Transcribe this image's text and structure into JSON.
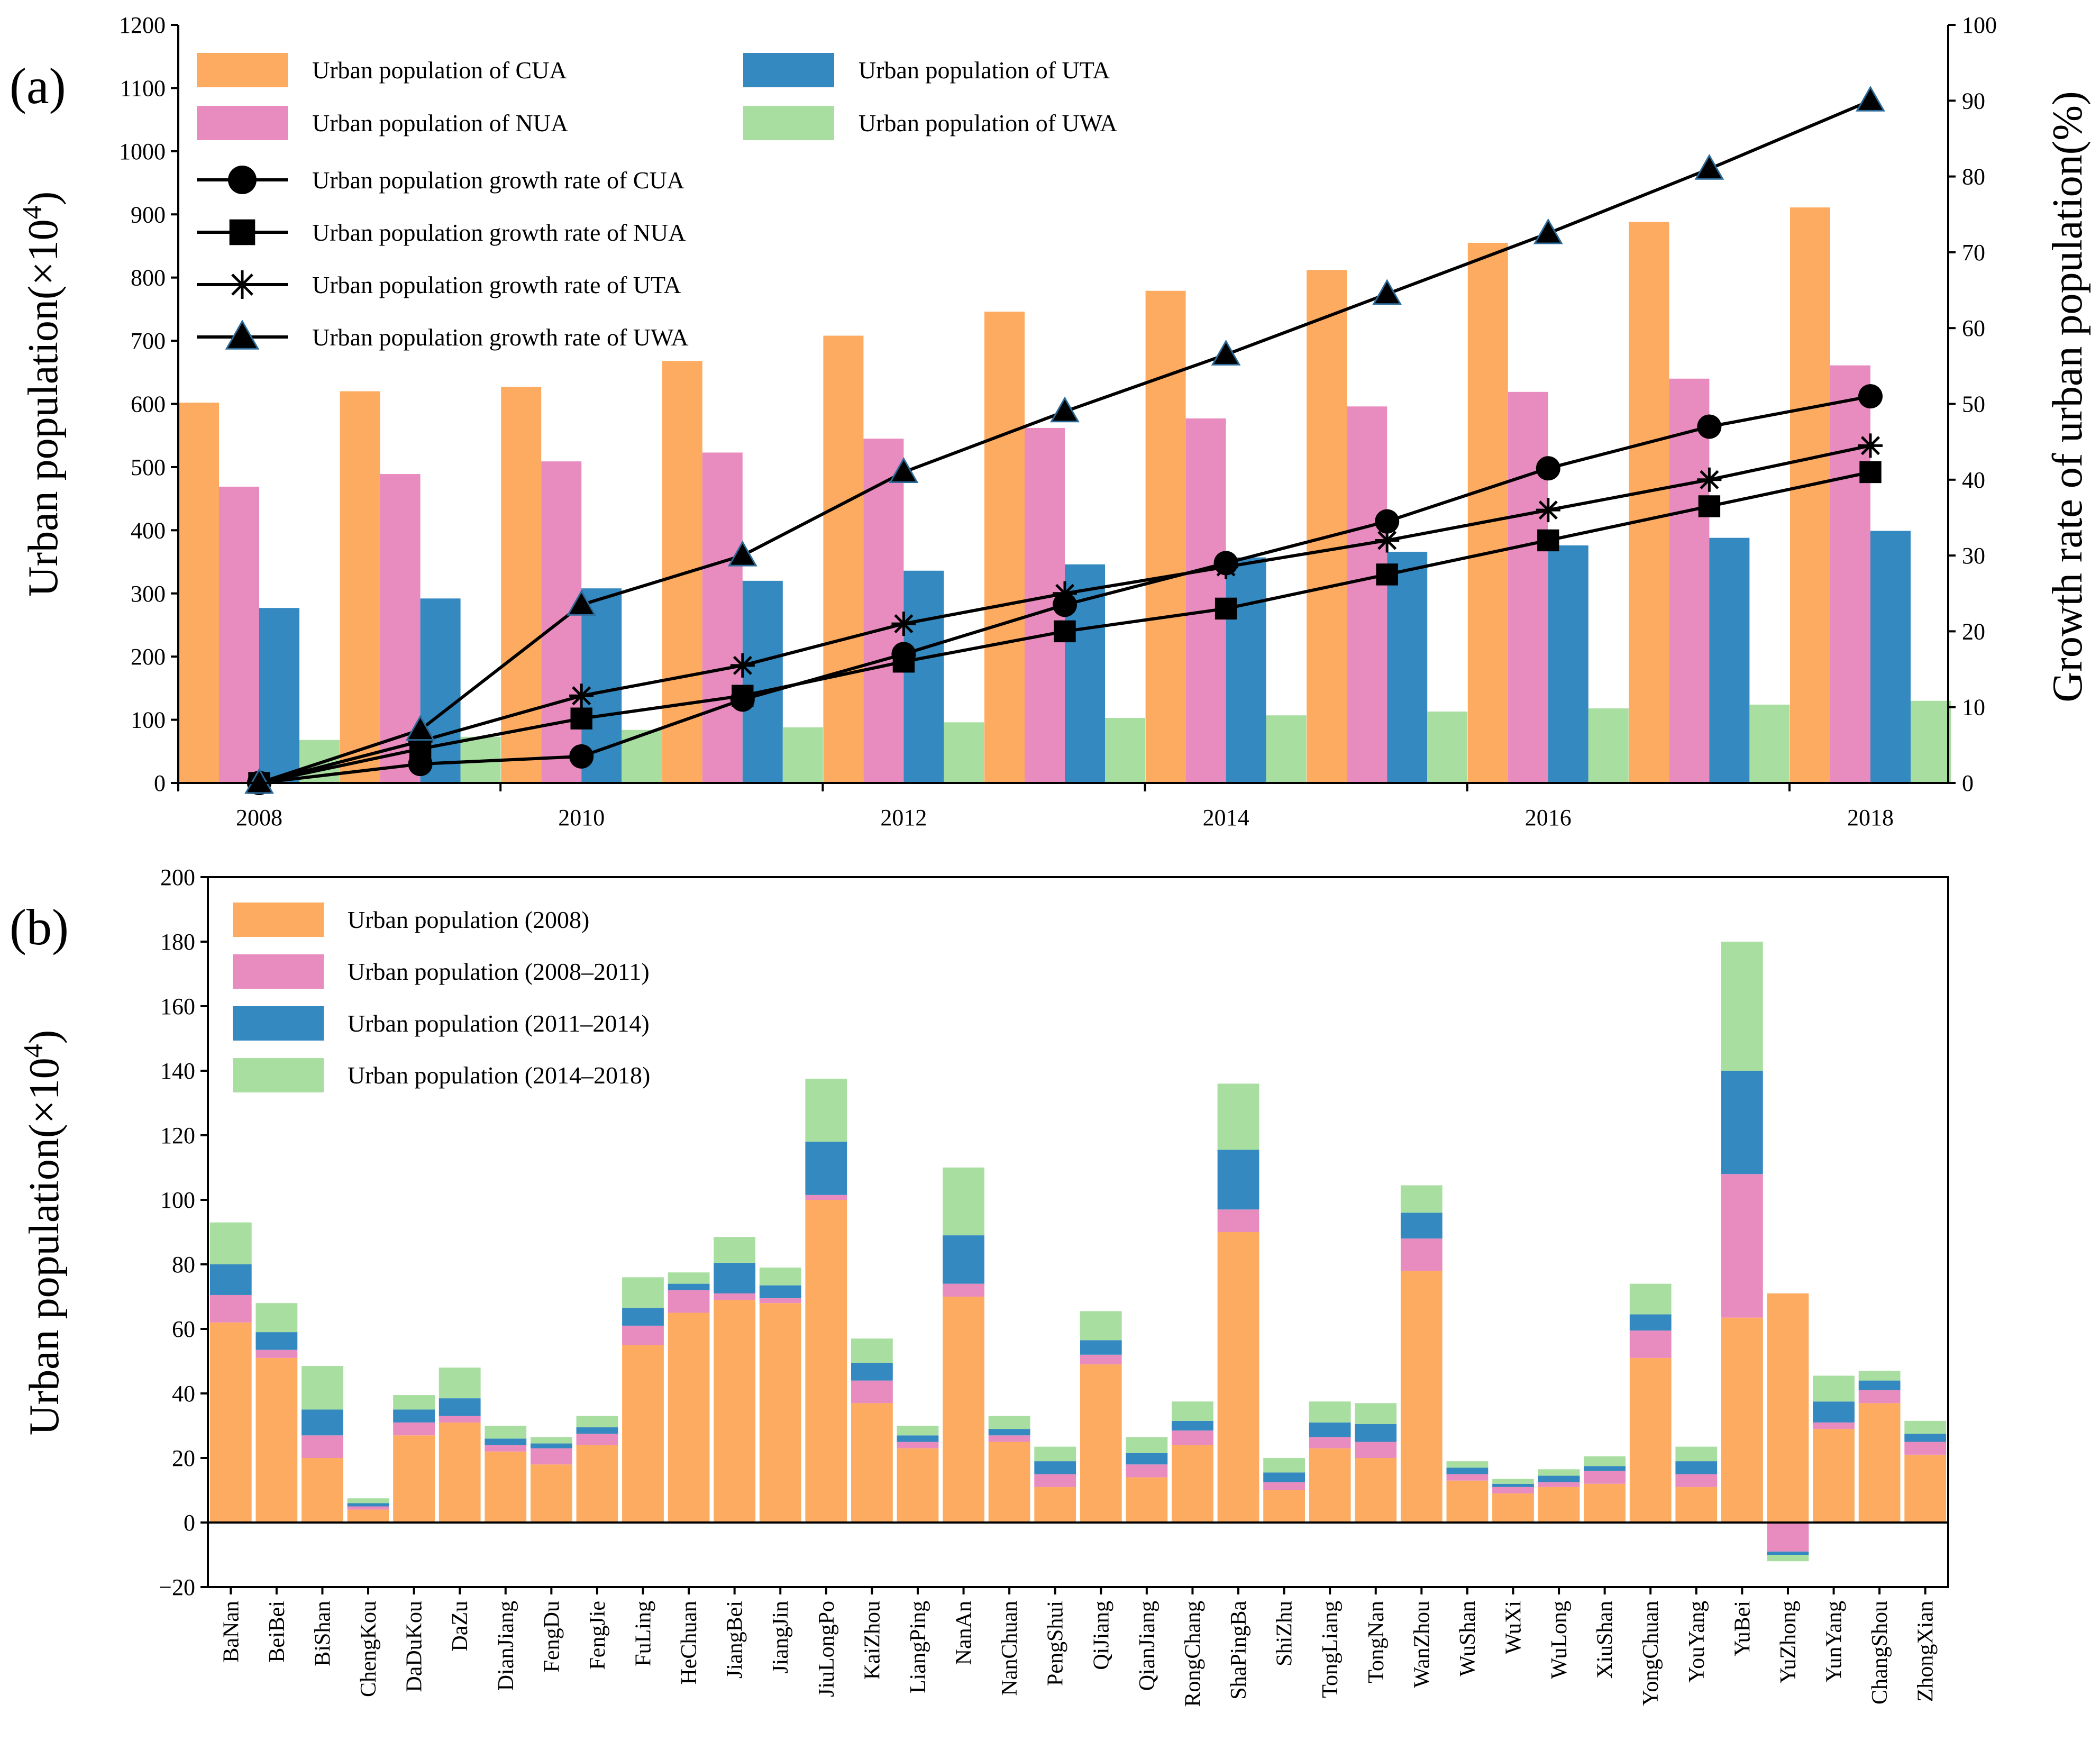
{
  "colors": {
    "cua": "#fdab60",
    "nua": "#e88cc0",
    "uta": "#3489c0",
    "uwa": "#a8dea0",
    "line": "#000000",
    "marker_edge": "#2b6a99"
  },
  "chart_data": [
    {
      "panel": "(a)",
      "type": "bar+line",
      "categories": [
        "2008",
        "2009",
        "2010",
        "2011",
        "2012",
        "2013",
        "2014",
        "2015",
        "2016",
        "2017",
        "2018"
      ],
      "x_tick_labels": [
        "2008",
        "2010",
        "2012",
        "2014",
        "2016",
        "2018"
      ],
      "ylabel": "Urban population(×10",
      "ylabel_sup": "4",
      "ylabel_close": ")",
      "ylim": [
        0,
        1200
      ],
      "yticks": [
        0,
        100,
        200,
        300,
        400,
        500,
        600,
        700,
        800,
        900,
        1000,
        1100,
        1200
      ],
      "y2label": "Growth rate of urban population(%)",
      "y2lim": [
        0,
        100
      ],
      "y2ticks": [
        0,
        10,
        20,
        30,
        40,
        50,
        60,
        70,
        80,
        90,
        100
      ],
      "bar_series": [
        {
          "name": "Urban population of CUA",
          "color_key": "cua",
          "values": [
            602,
            620,
            627,
            668,
            708,
            746,
            779,
            812,
            855,
            888,
            911
          ]
        },
        {
          "name": "Urban population of NUA",
          "color_key": "nua",
          "values": [
            469,
            489,
            509,
            523,
            545,
            562,
            577,
            596,
            619,
            640,
            661
          ]
        },
        {
          "name": "Urban population of UTA",
          "color_key": "uta",
          "values": [
            277,
            292,
            308,
            320,
            336,
            346,
            357,
            366,
            376,
            388,
            399
          ]
        },
        {
          "name": "Urban population of UWA",
          "color_key": "uwa",
          "values": [
            68,
            73,
            84,
            88,
            96,
            103,
            107,
            113,
            118,
            124,
            130
          ]
        }
      ],
      "line_series": [
        {
          "name": "Urban population growth rate of CUA",
          "marker": "circle",
          "values": [
            0,
            2.5,
            3.5,
            11,
            17,
            23.5,
            29,
            34.5,
            41.5,
            47,
            51
          ]
        },
        {
          "name": "Urban population growth rate of NUA",
          "marker": "square",
          "values": [
            0,
            4.5,
            8.5,
            11.5,
            16,
            20,
            23,
            27.5,
            32,
            36.5,
            41
          ]
        },
        {
          "name": "Urban population growth rate of UTA",
          "marker": "star",
          "values": [
            0,
            5.5,
            11.5,
            15.5,
            21,
            25,
            28.5,
            32,
            36,
            40,
            44.5
          ]
        },
        {
          "name": "Urban population growth rate of UWA",
          "marker": "triangle",
          "values": [
            0,
            7,
            23.5,
            30,
            41,
            49,
            56.5,
            64.5,
            72.5,
            81,
            90
          ]
        }
      ]
    },
    {
      "panel": "(b)",
      "type": "stacked-bar",
      "ylabel": "Urban population(×10",
      "ylabel_sup": "4",
      "ylabel_close": ")",
      "ylim": [
        -20,
        200
      ],
      "yticks": [
        -20,
        0,
        20,
        40,
        60,
        80,
        100,
        120,
        140,
        160,
        180,
        200
      ],
      "categories": [
        "BaNan",
        "BeiBei",
        "BiShan",
        "ChengKou",
        "DaDuKou",
        "DaZu",
        "DianJiang",
        "FengDu",
        "FengJie",
        "FuLing",
        "HeChuan",
        "JiangBei",
        "JiangJin",
        "JiuLongPo",
        "KaiZhou",
        "LiangPing",
        "NanAn",
        "NanChuan",
        "PengShui",
        "QiJiang",
        "QianJiang",
        "RongChang",
        "ShaPingBa",
        "ShiZhu",
        "TongLiang",
        "TongNan",
        "WanZhou",
        "WuShan",
        "WuXi",
        "WuLong",
        "XiuShan",
        "YongChuan",
        "YouYang",
        "YuBei",
        "YuZhong",
        "YunYang",
        "ChangShou",
        "ZhongXian"
      ],
      "series": [
        {
          "name": "Urban population (2008)",
          "color_key": "cua",
          "values": [
            62,
            51,
            20,
            4,
            27,
            31,
            22,
            18,
            24,
            55,
            65,
            69,
            68,
            100,
            37,
            23,
            70,
            25,
            11,
            49,
            14,
            24,
            90,
            10,
            23,
            20,
            78,
            13,
            9,
            11,
            12,
            51,
            11,
            63.5,
            71,
            29,
            37,
            21
          ]
        },
        {
          "name": "Urban population (2008–2011)",
          "color_key": "nua",
          "values": [
            8.5,
            2.5,
            7,
            1,
            4,
            2,
            2,
            5,
            3.5,
            6,
            7,
            2,
            1.5,
            1.5,
            7,
            2,
            4,
            2,
            4,
            3,
            4,
            4.5,
            7,
            2.5,
            3.5,
            5,
            10,
            2,
            2,
            1.5,
            4,
            8.5,
            4,
            44.5,
            -9,
            2,
            4,
            4
          ]
        },
        {
          "name": "Urban population (2011–2014)",
          "color_key": "uta",
          "values": [
            9.5,
            5.5,
            8,
            1,
            4,
            5.5,
            2,
            1.5,
            2,
            5.5,
            2,
            9.5,
            4,
            16.5,
            5.5,
            2,
            15,
            2,
            4,
            4.5,
            3.5,
            3,
            18.5,
            3,
            4.5,
            5.5,
            8,
            2,
            1,
            2,
            1.5,
            5,
            4,
            32,
            -1,
            6.5,
            3,
            2.5
          ]
        },
        {
          "name": "Urban population (2014–2018)",
          "color_key": "uwa",
          "values": [
            13,
            9,
            13.5,
            1.5,
            4.5,
            9.5,
            4,
            2,
            3.5,
            9.5,
            3.5,
            8,
            5.5,
            19.5,
            7.5,
            3,
            21,
            4,
            4.5,
            9,
            5,
            6,
            20.5,
            4.5,
            6.5,
            6.5,
            8.5,
            2,
            1.5,
            2,
            3,
            9.5,
            4.5,
            40,
            -2,
            8,
            3,
            4
          ]
        }
      ]
    }
  ]
}
